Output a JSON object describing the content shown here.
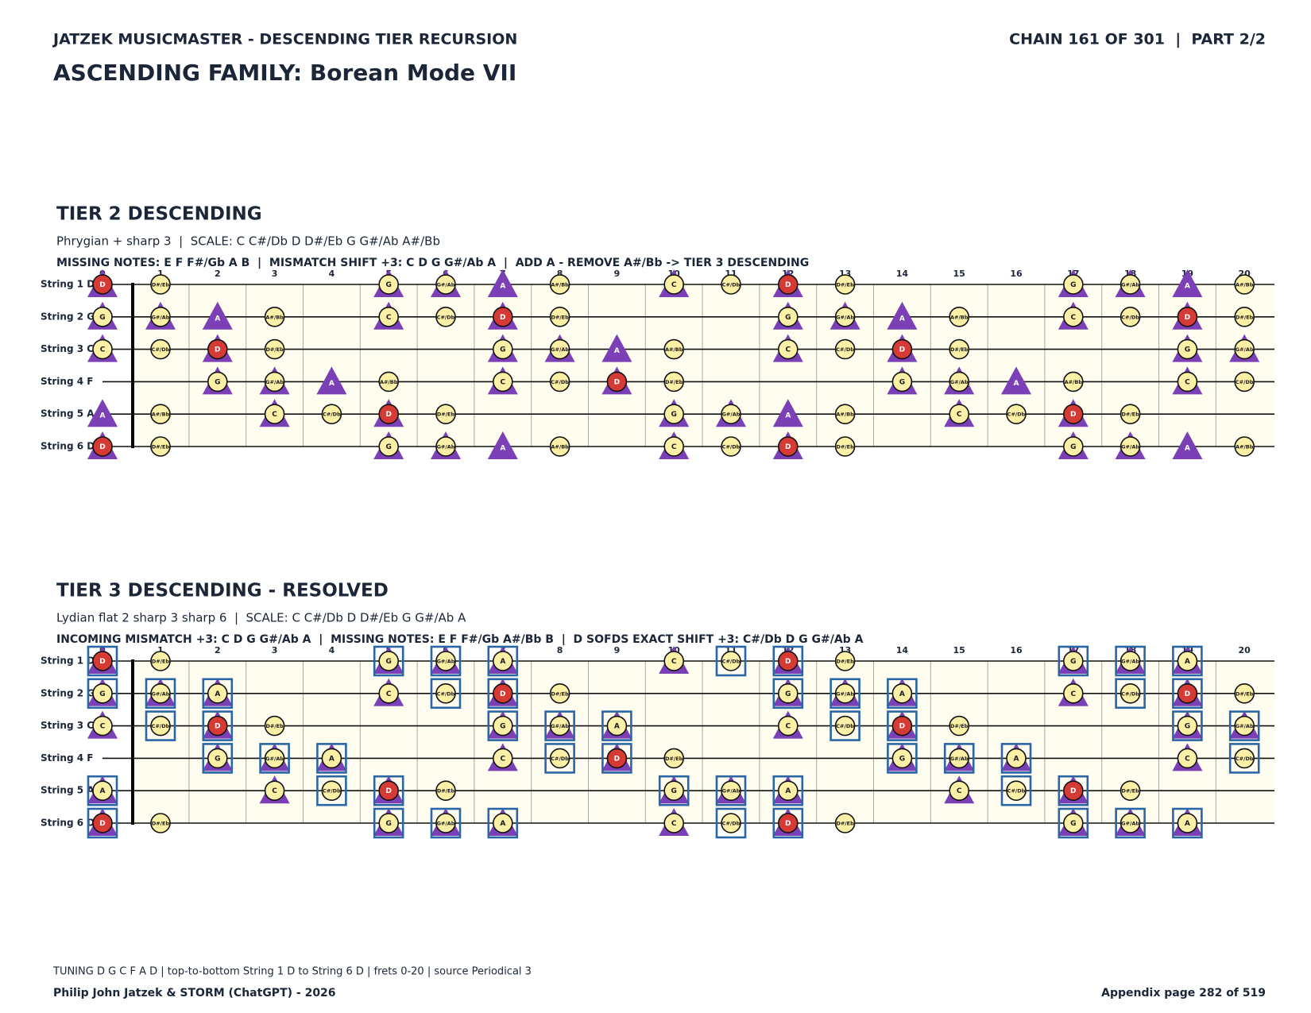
{
  "header": {
    "series_title": "JATZEK MUSICMASTER - DESCENDING TIER RECURSION",
    "chain": "CHAIN 161 OF 301  |  PART 2/2",
    "title": "ASCENDING FAMILY: Borean Mode VII"
  },
  "colors": {
    "circle": "#fcefa6",
    "root": "#d53a35",
    "triangle": "#7b3fb6",
    "box": "#2a66a6",
    "board": "#fffdf0"
  },
  "frets": [
    0,
    1,
    2,
    3,
    4,
    5,
    6,
    7,
    8,
    9,
    10,
    11,
    12,
    13,
    14,
    15,
    16,
    17,
    18,
    19,
    20
  ],
  "tiers": [
    {
      "heading": "TIER 2 DESCENDING",
      "subtitle": "Phrygian + sharp 3  |  SCALE: C C#/Db D D#/Eb G G#/Ab A#/Bb",
      "detail": "MISSING NOTES: E F F#/Gb A B  |  MISMATCH SHIFT +3: C D G G#/Ab A  |  ADD A - REMOVE A#/Bb -> TIER 3 DESCENDING",
      "strings": [
        {
          "label": "String 1 D",
          "notes": [
            "D",
            "D#/Eb",
            null,
            null,
            null,
            "G",
            "G#/Ab",
            "A",
            "A#/Bb",
            null,
            "C",
            "C#/Db",
            "D",
            "D#/Eb",
            null,
            null,
            null,
            "G",
            "G#/Ab",
            "A",
            "A#/Bb"
          ],
          "circles": [
            0,
            1,
            5,
            6,
            8,
            10,
            11,
            12,
            13,
            17,
            18,
            20
          ],
          "roots": [
            0,
            12
          ],
          "triangles": [
            0,
            5,
            6,
            7,
            10,
            12,
            17,
            18,
            19
          ],
          "boxes": []
        },
        {
          "label": "String 2 G",
          "notes": [
            "G",
            "G#/Ab",
            "A",
            "A#/Bb",
            null,
            "C",
            "C#/Db",
            "D",
            "D#/Eb",
            null,
            null,
            null,
            "G",
            "G#/Ab",
            "A",
            "A#/Bb",
            null,
            "C",
            "C#/Db",
            "D",
            "D#/Eb"
          ],
          "circles": [
            0,
            1,
            3,
            5,
            6,
            7,
            8,
            12,
            13,
            15,
            17,
            18,
            19,
            20
          ],
          "roots": [
            7,
            19
          ],
          "triangles": [
            0,
            1,
            2,
            5,
            7,
            12,
            13,
            14,
            17,
            19
          ],
          "boxes": []
        },
        {
          "label": "String 3 C",
          "notes": [
            "C",
            "C#/Db",
            "D",
            "D#/Eb",
            null,
            null,
            null,
            "G",
            "G#/Ab",
            "A",
            "A#/Bb",
            null,
            "C",
            "C#/Db",
            "D",
            "D#/Eb",
            null,
            null,
            null,
            "G",
            "G#/Ab"
          ],
          "circles": [
            0,
            1,
            2,
            3,
            7,
            8,
            10,
            12,
            13,
            14,
            15,
            19,
            20
          ],
          "roots": [
            2,
            14
          ],
          "triangles": [
            0,
            2,
            7,
            8,
            9,
            12,
            14,
            19,
            20
          ],
          "boxes": []
        },
        {
          "label": "String 4 F",
          "notes": [
            null,
            null,
            "G",
            "G#/Ab",
            "A",
            "A#/Bb",
            null,
            "C",
            "C#/Db",
            "D",
            "D#/Eb",
            null,
            null,
            null,
            "G",
            "G#/Ab",
            "A",
            "A#/Bb",
            null,
            "C",
            "C#/Db"
          ],
          "circles": [
            2,
            3,
            5,
            7,
            8,
            9,
            10,
            14,
            15,
            17,
            19,
            20
          ],
          "roots": [
            9
          ],
          "triangles": [
            2,
            3,
            4,
            7,
            9,
            14,
            15,
            16,
            19
          ],
          "boxes": []
        },
        {
          "label": "String 5 A",
          "notes": [
            "A",
            "A#/Bb",
            null,
            "C",
            "C#/Db",
            "D",
            "D#/Eb",
            null,
            null,
            null,
            "G",
            "G#/Ab",
            "A",
            "A#/Bb",
            null,
            "C",
            "C#/Db",
            "D",
            "D#/Eb",
            null,
            null
          ],
          "circles": [
            1,
            3,
            4,
            5,
            6,
            10,
            11,
            13,
            15,
            16,
            17,
            18
          ],
          "roots": [
            5,
            17
          ],
          "triangles": [
            0,
            3,
            5,
            10,
            11,
            12,
            15,
            17
          ],
          "boxes": []
        },
        {
          "label": "String 6 D",
          "notes": [
            "D",
            "D#/Eb",
            null,
            null,
            null,
            "G",
            "G#/Ab",
            "A",
            "A#/Bb",
            null,
            "C",
            "C#/Db",
            "D",
            "D#/Eb",
            null,
            null,
            null,
            "G",
            "G#/Ab",
            "A",
            "A#/Bb"
          ],
          "circles": [
            0,
            1,
            5,
            6,
            8,
            10,
            11,
            12,
            13,
            17,
            18,
            20
          ],
          "roots": [
            0,
            12
          ],
          "triangles": [
            0,
            5,
            6,
            7,
            10,
            12,
            17,
            18,
            19
          ],
          "boxes": []
        }
      ]
    },
    {
      "heading": "TIER 3 DESCENDING - RESOLVED",
      "subtitle": "Lydian flat 2 sharp 3 sharp 6  |  SCALE: C C#/Db D D#/Eb G G#/Ab A",
      "detail": "INCOMING MISMATCH +3: C D G G#/Ab A  |  MISSING NOTES: E F F#/Gb A#/Bb B  |  D SOFDS EXACT SHIFT +3: C#/Db D G G#/Ab A",
      "strings": [
        {
          "label": "String 1 D",
          "notes": [
            "D",
            "D#/Eb",
            null,
            null,
            null,
            "G",
            "G#/Ab",
            "A",
            null,
            null,
            "C",
            "C#/Db",
            "D",
            "D#/Eb",
            null,
            null,
            null,
            "G",
            "G#/Ab",
            "A",
            null
          ],
          "circles": [
            0,
            1,
            5,
            6,
            7,
            10,
            11,
            12,
            13,
            17,
            18,
            19
          ],
          "roots": [
            0,
            12
          ],
          "triangles": [
            0,
            5,
            6,
            7,
            10,
            12,
            17,
            18,
            19
          ],
          "boxes": [
            0,
            5,
            6,
            7,
            11,
            12,
            17,
            18,
            19
          ]
        },
        {
          "label": "String 2 G",
          "notes": [
            "G",
            "G#/Ab",
            "A",
            null,
            null,
            "C",
            "C#/Db",
            "D",
            "D#/Eb",
            null,
            null,
            null,
            "G",
            "G#/Ab",
            "A",
            null,
            null,
            "C",
            "C#/Db",
            "D",
            "D#/Eb"
          ],
          "circles": [
            0,
            1,
            2,
            5,
            6,
            7,
            8,
            12,
            13,
            14,
            17,
            18,
            19,
            20
          ],
          "roots": [
            7,
            19
          ],
          "triangles": [
            0,
            1,
            2,
            5,
            7,
            12,
            13,
            14,
            17,
            19
          ],
          "boxes": [
            0,
            1,
            2,
            6,
            7,
            12,
            13,
            14,
            18,
            19
          ]
        },
        {
          "label": "String 3 C",
          "notes": [
            "C",
            "C#/Db",
            "D",
            "D#/Eb",
            null,
            null,
            null,
            "G",
            "G#/Ab",
            "A",
            null,
            null,
            "C",
            "C#/Db",
            "D",
            "D#/Eb",
            null,
            null,
            null,
            "G",
            "G#/Ab"
          ],
          "circles": [
            0,
            1,
            2,
            3,
            7,
            8,
            9,
            12,
            13,
            14,
            15,
            19,
            20
          ],
          "roots": [
            2,
            14
          ],
          "triangles": [
            0,
            2,
            7,
            8,
            9,
            12,
            14,
            19,
            20
          ],
          "boxes": [
            1,
            2,
            7,
            8,
            9,
            13,
            14,
            19,
            20
          ]
        },
        {
          "label": "String 4 F",
          "notes": [
            null,
            null,
            "G",
            "G#/Ab",
            "A",
            null,
            null,
            "C",
            "C#/Db",
            "D",
            "D#/Eb",
            null,
            null,
            null,
            "G",
            "G#/Ab",
            "A",
            null,
            null,
            "C",
            "C#/Db"
          ],
          "circles": [
            2,
            3,
            4,
            7,
            8,
            9,
            10,
            14,
            15,
            16,
            19,
            20
          ],
          "roots": [
            9
          ],
          "triangles": [
            2,
            3,
            4,
            7,
            9,
            14,
            15,
            16,
            19
          ],
          "boxes": [
            2,
            3,
            4,
            8,
            9,
            14,
            15,
            16,
            20
          ]
        },
        {
          "label": "String 5 A",
          "notes": [
            "A",
            null,
            null,
            "C",
            "C#/Db",
            "D",
            "D#/Eb",
            null,
            null,
            null,
            "G",
            "G#/Ab",
            "A",
            null,
            null,
            "C",
            "C#/Db",
            "D",
            "D#/Eb",
            null,
            null
          ],
          "circles": [
            0,
            3,
            4,
            5,
            6,
            10,
            11,
            12,
            15,
            16,
            17,
            18
          ],
          "roots": [
            5,
            17
          ],
          "triangles": [
            0,
            3,
            5,
            10,
            11,
            12,
            15,
            17
          ],
          "boxes": [
            0,
            4,
            5,
            10,
            11,
            12,
            16,
            17
          ]
        },
        {
          "label": "String 6 D",
          "notes": [
            "D",
            "D#/Eb",
            null,
            null,
            null,
            "G",
            "G#/Ab",
            "A",
            null,
            null,
            "C",
            "C#/Db",
            "D",
            "D#/Eb",
            null,
            null,
            null,
            "G",
            "G#/Ab",
            "A",
            null
          ],
          "circles": [
            0,
            1,
            5,
            6,
            7,
            10,
            11,
            12,
            13,
            17,
            18,
            19
          ],
          "roots": [
            0,
            12
          ],
          "triangles": [
            0,
            5,
            6,
            7,
            10,
            12,
            17,
            18,
            19
          ],
          "boxes": [
            0,
            5,
            6,
            7,
            11,
            12,
            17,
            18,
            19
          ]
        }
      ]
    }
  ],
  "footer": {
    "tuning": "TUNING D G C F A D | top-to-bottom String 1 D to String 6 D | frets 0-20 | source Periodical 3",
    "credit": "Philip John Jatzek & STORM (ChatGPT) - 2026",
    "page": "Appendix page 282 of 519"
  }
}
